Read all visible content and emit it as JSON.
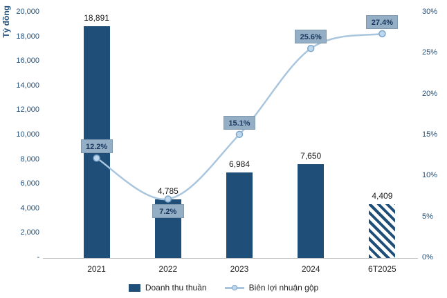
{
  "chart_data": {
    "type": "combo",
    "categories": [
      "2021",
      "2022",
      "2023",
      "2024",
      "6T2025"
    ],
    "series": [
      {
        "name": "Doanh thu thuần",
        "type": "bar",
        "axis": "left",
        "values": [
          18891,
          4785,
          6984,
          7650,
          4409
        ],
        "labels": [
          "18,891",
          "4,785",
          "6,984",
          "7,650",
          "4,409"
        ],
        "hatched": [
          false,
          false,
          false,
          false,
          true
        ]
      },
      {
        "name": "Biên lợi nhuận gộp",
        "type": "line",
        "axis": "right",
        "values": [
          12.2,
          7.2,
          15.1,
          25.6,
          27.4
        ],
        "labels": [
          "12.2%",
          "7.2%",
          "15.1%",
          "25.6%",
          "27.4%"
        ],
        "label_positions": [
          "above",
          "below",
          "above",
          "above",
          "above"
        ]
      }
    ],
    "left_axis": {
      "title": "Tỷ đồng",
      "min": 0,
      "max": 20000,
      "tick_labels": [
        "20,000",
        "18,000",
        "16,000",
        "14,000",
        "12,000",
        "10,000",
        "8,000",
        "6,000",
        "4,000",
        "2,000",
        "-"
      ]
    },
    "right_axis": {
      "min": 0,
      "max": 30,
      "tick_labels": [
        "30%",
        "25%",
        "20%",
        "15%",
        "10%",
        "5%",
        "0%"
      ]
    },
    "legend_position": "bottom",
    "grid": false
  },
  "colors": {
    "bar": "#1F4E79",
    "line": "#A9C6DE",
    "marker_fill": "#BDD7EE",
    "marker_stroke": "#7EA6C8",
    "label_box_bg": "#94AEC5",
    "label_box_border": "#7E99B0",
    "label_box_text": "#17375E",
    "axis_text": "#1F4E79",
    "baseline": "#BFBFBF"
  }
}
